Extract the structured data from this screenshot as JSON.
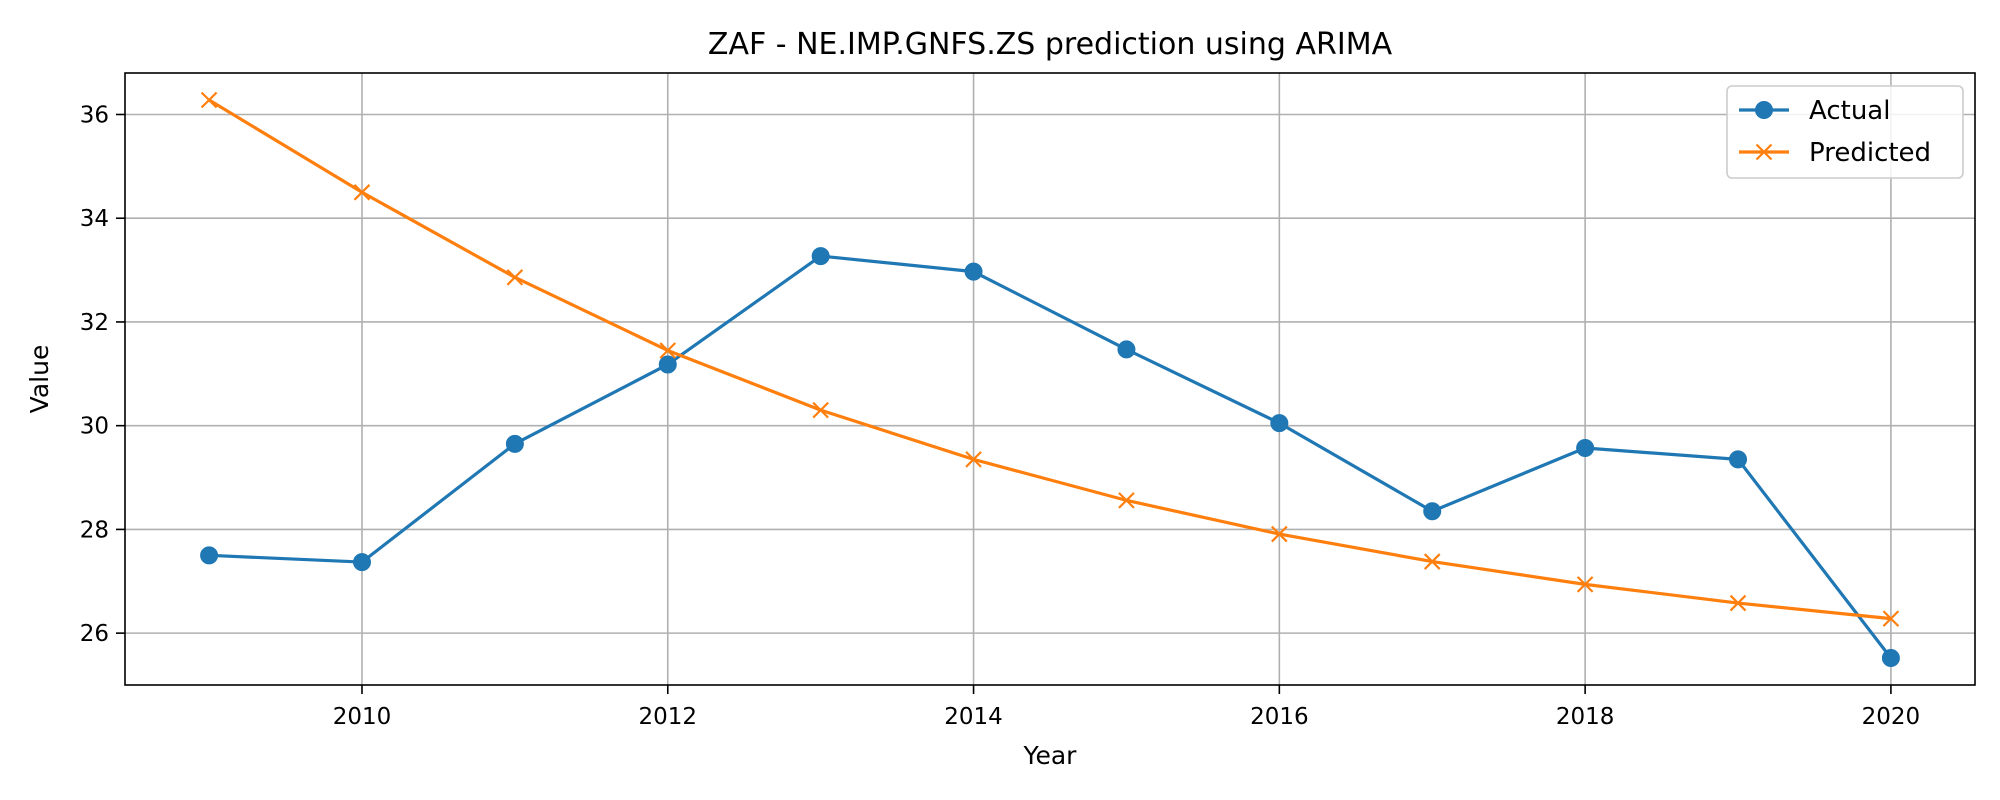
{
  "chart_data": {
    "type": "line",
    "title": "ZAF - NE.IMP.GNFS.ZS prediction using ARIMA",
    "xlabel": "Year",
    "ylabel": "Value",
    "x": [
      2009,
      2010,
      2011,
      2012,
      2013,
      2014,
      2015,
      2016,
      2017,
      2018,
      2019,
      2020
    ],
    "x_ticks": [
      2010,
      2012,
      2014,
      2016,
      2018,
      2020
    ],
    "y_ticks": [
      26,
      28,
      30,
      32,
      34,
      36
    ],
    "xlim": [
      2008.45,
      2020.55
    ],
    "ylim": [
      25.0,
      36.8
    ],
    "grid": true,
    "legend_position": "top-right",
    "series": [
      {
        "name": "Actual",
        "color": "#1f77b4",
        "marker": "circle",
        "values": [
          27.5,
          27.37,
          29.65,
          31.18,
          33.27,
          32.97,
          31.47,
          30.05,
          28.35,
          29.57,
          29.35,
          25.52
        ]
      },
      {
        "name": "Predicted",
        "color": "#ff7f0e",
        "marker": "x",
        "values": [
          36.28,
          34.5,
          32.86,
          31.45,
          30.3,
          29.35,
          28.56,
          27.91,
          27.38,
          26.94,
          26.58,
          26.28
        ]
      }
    ]
  }
}
